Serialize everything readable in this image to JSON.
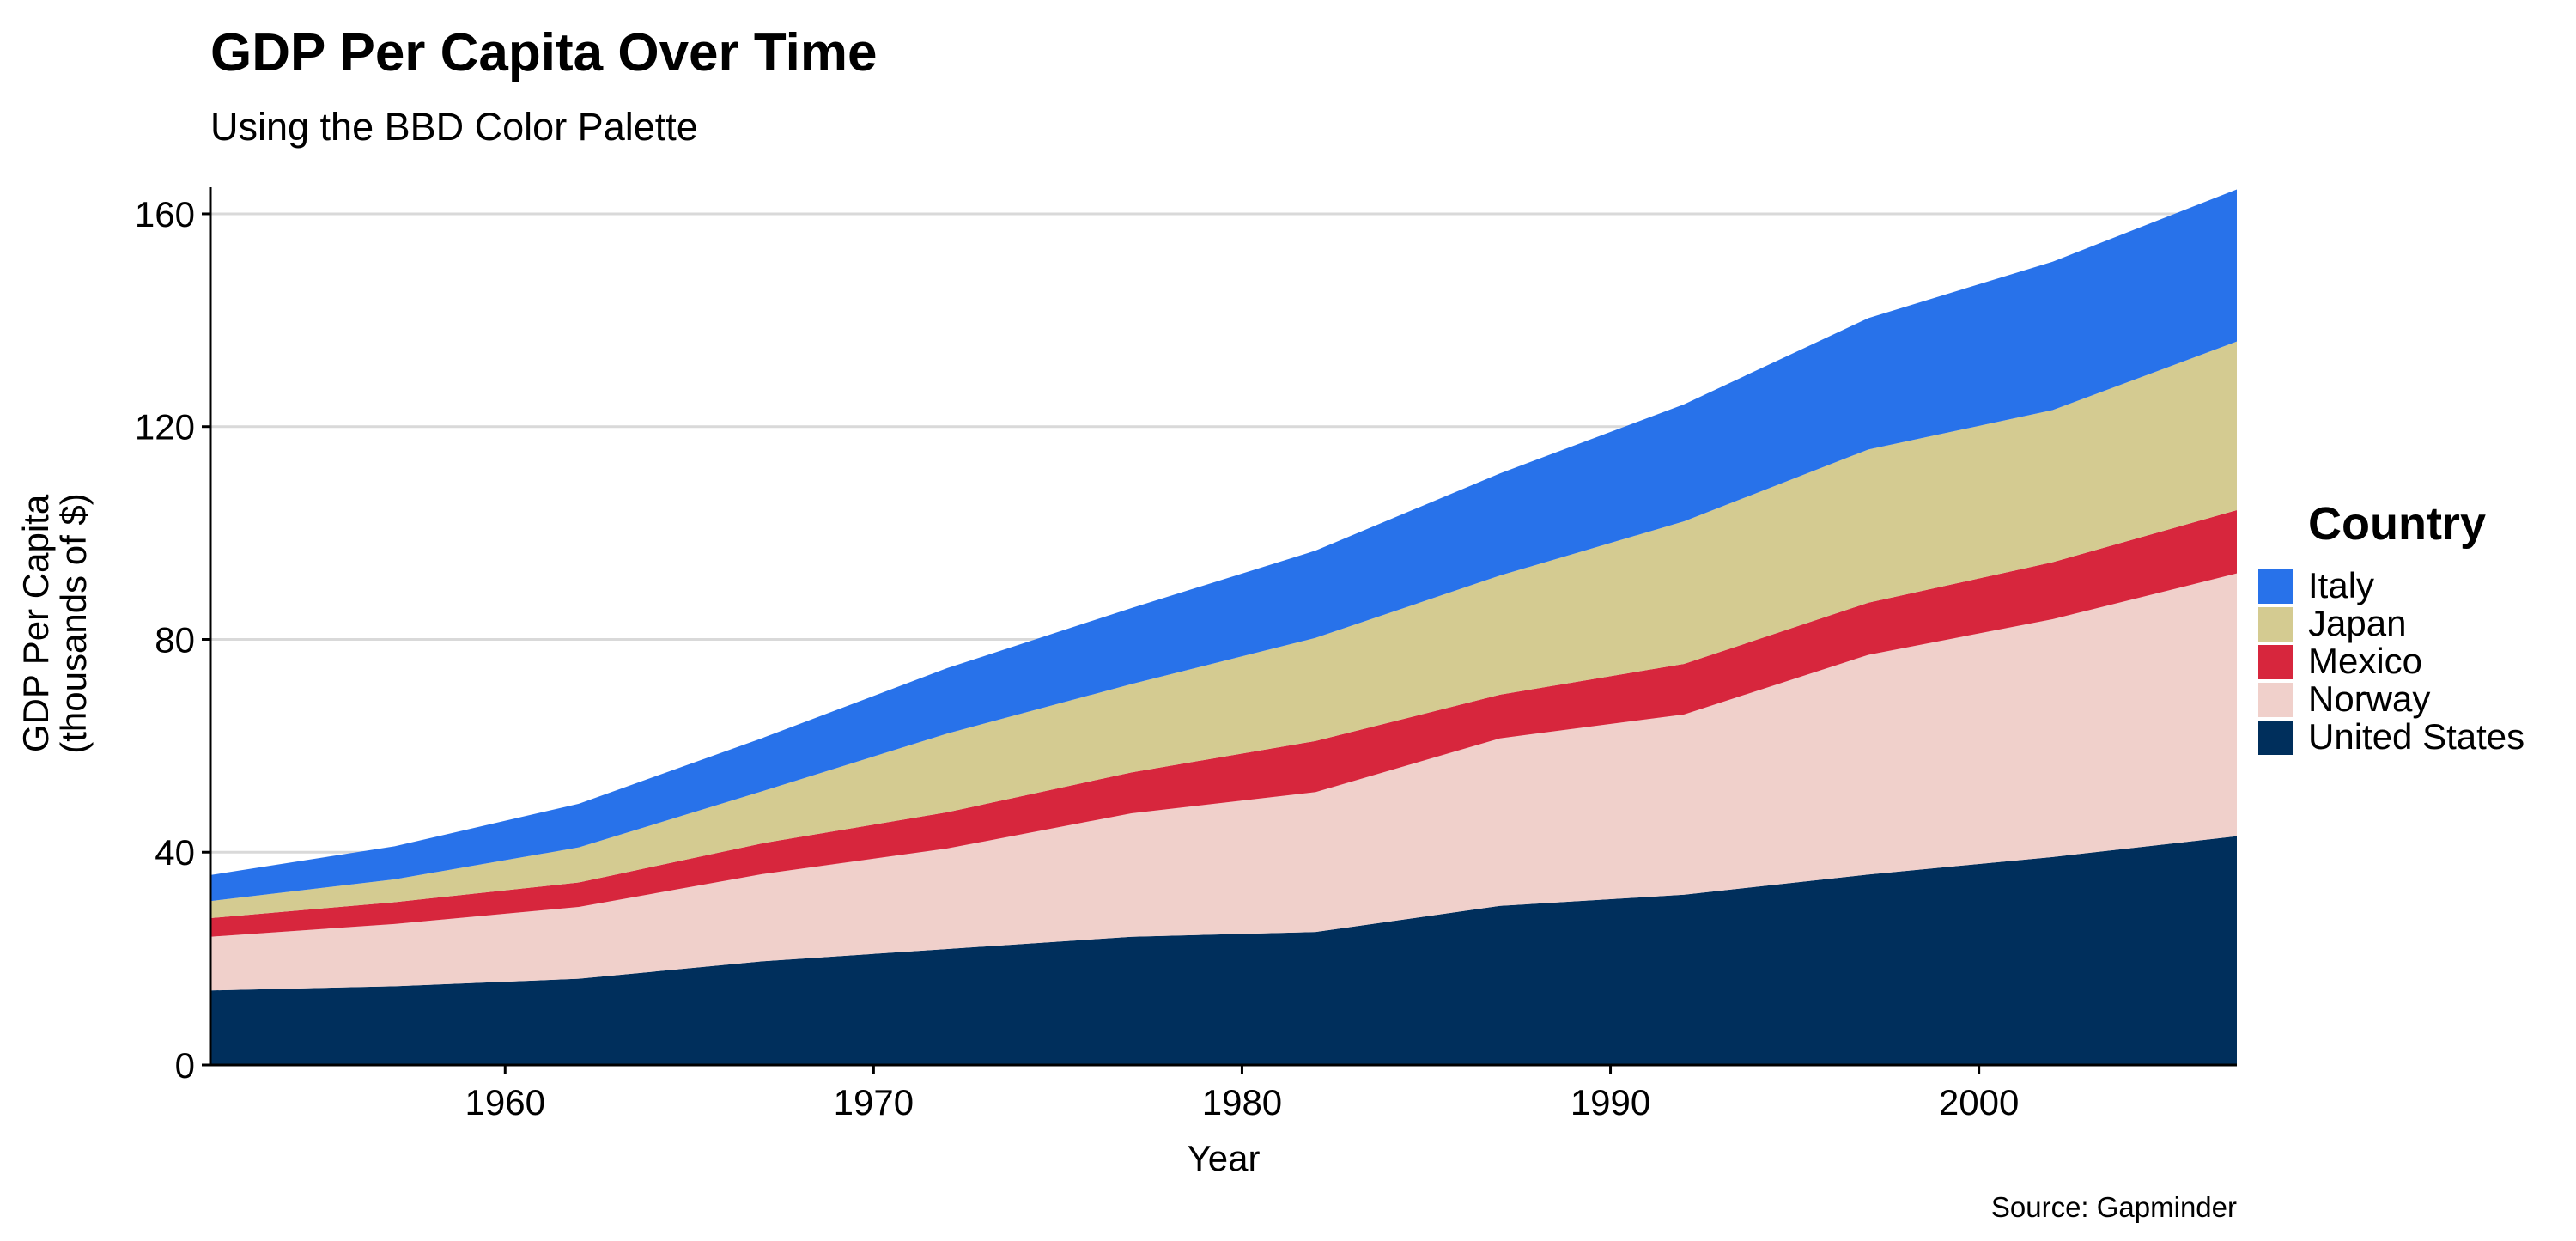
{
  "chart_data": {
    "type": "area",
    "stacked": true,
    "title": "GDP Per Capita Over Time",
    "subtitle": "Using the BBD Color Palette",
    "xlabel": "Year",
    "ylabel": [
      "GDP Per Capita",
      "(thousands of $)"
    ],
    "caption": "Source: Gapminder",
    "xlim": [
      1952,
      2007
    ],
    "ylim": [
      0,
      165
    ],
    "x_ticks": [
      1960,
      1970,
      1980,
      1990,
      2000
    ],
    "y_ticks": [
      0,
      40,
      80,
      120,
      160
    ],
    "grid": "horizontal",
    "legend_title": "Country",
    "legend_position": "right",
    "x": [
      1952,
      1957,
      1962,
      1967,
      1972,
      1977,
      1982,
      1987,
      1992,
      1997,
      2002,
      2007
    ],
    "series": [
      {
        "name": "United States",
        "color": "#002F5C",
        "values": [
          14.0,
          14.8,
          16.2,
          19.5,
          21.8,
          24.1,
          25.0,
          29.9,
          32.0,
          35.8,
          39.1,
          43.0
        ]
      },
      {
        "name": "Norway",
        "color": "#F0D0CB",
        "values": [
          10.1,
          11.7,
          13.5,
          16.4,
          18.9,
          23.2,
          26.3,
          31.5,
          33.9,
          41.3,
          44.7,
          49.4
        ]
      },
      {
        "name": "Mexico",
        "color": "#D7263D",
        "values": [
          3.5,
          4.1,
          4.6,
          5.8,
          6.8,
          7.7,
          9.6,
          8.2,
          9.5,
          9.8,
          10.7,
          11.9
        ]
      },
      {
        "name": "Japan",
        "color": "#D4CB91",
        "values": [
          3.2,
          4.3,
          6.6,
          9.8,
          14.8,
          16.6,
          19.4,
          22.4,
          26.8,
          28.8,
          28.6,
          31.7
        ]
      },
      {
        "name": "Italy",
        "color": "#2872EA",
        "values": [
          4.9,
          6.2,
          8.2,
          10.0,
          12.3,
          14.3,
          16.4,
          19.2,
          22.0,
          24.7,
          27.9,
          28.6
        ]
      }
    ],
    "legend_order": [
      "Italy",
      "Japan",
      "Mexico",
      "Norway",
      "United States"
    ]
  }
}
